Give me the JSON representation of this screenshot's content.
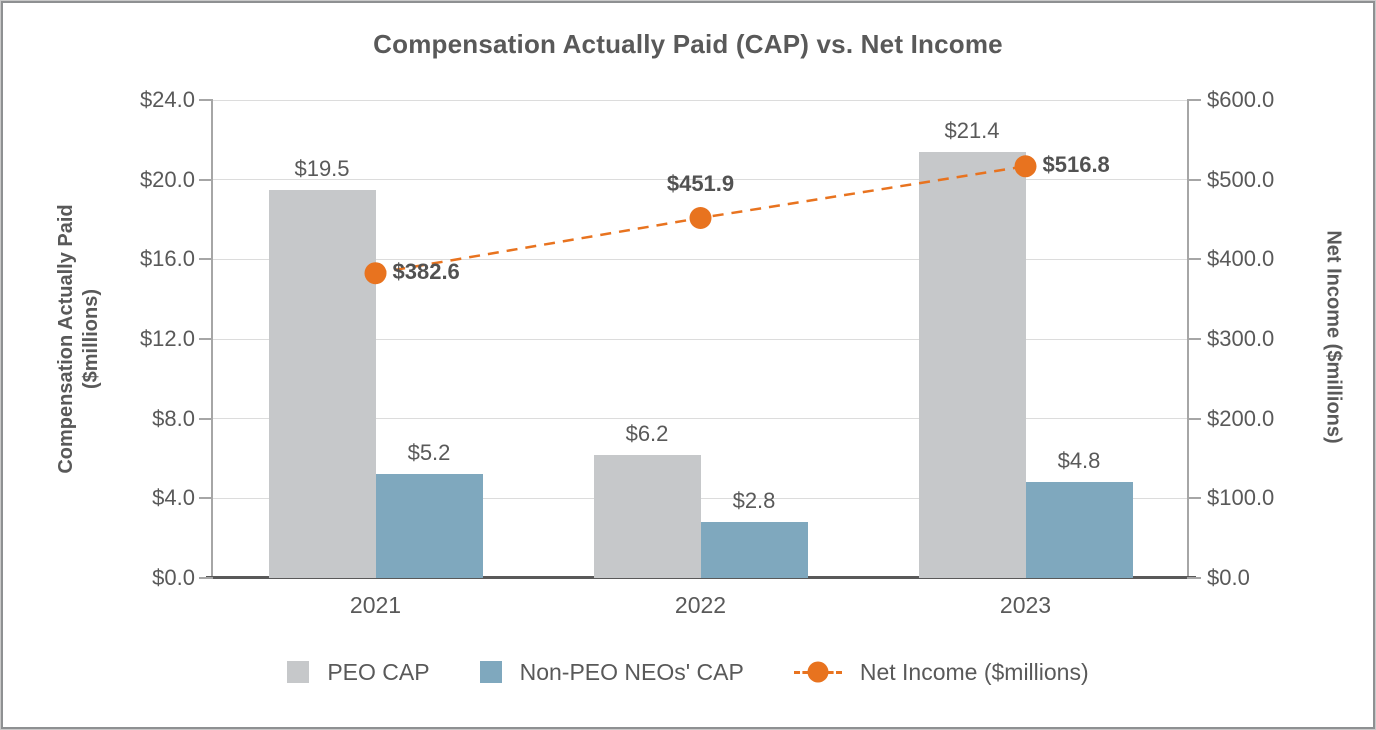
{
  "colors": {
    "text": "#595959",
    "gridline": "#dcdcdc",
    "axis_line": "#a6a6a6",
    "x_axis_line": "#595959",
    "peo_bar": "#c6c8ca",
    "non_peo_bar": "#7fa8be",
    "net_income": "#e8731f"
  },
  "chart_data": {
    "type": "bar",
    "subtype": "combo-bar-line-dual-axis",
    "title": "Compensation Actually Paid (CAP) vs. Net Income",
    "categories": [
      "2021",
      "2022",
      "2023"
    ],
    "grid": "horizontal",
    "legend_position": "bottom",
    "left_axis": {
      "title": "Compensation Actually Paid\n($millions)",
      "min": 0,
      "max": 24,
      "ticks": [
        {
          "value": 0,
          "label": "$0.0"
        },
        {
          "value": 4,
          "label": "$4.0"
        },
        {
          "value": 8,
          "label": "$8.0"
        },
        {
          "value": 12,
          "label": "$12.0"
        },
        {
          "value": 16,
          "label": "$16.0"
        },
        {
          "value": 20,
          "label": "$20.0"
        },
        {
          "value": 24,
          "label": "$24.0"
        }
      ]
    },
    "right_axis": {
      "title": "Net Income ($millions)",
      "min": 0,
      "max": 600,
      "ticks": [
        {
          "value": 0,
          "label": "$0.0"
        },
        {
          "value": 100,
          "label": "$100.0"
        },
        {
          "value": 200,
          "label": "$200.0"
        },
        {
          "value": 300,
          "label": "$300.0"
        },
        {
          "value": 400,
          "label": "$400.0"
        },
        {
          "value": 500,
          "label": "$500.0"
        },
        {
          "value": 600,
          "label": "$600.0"
        }
      ]
    },
    "bar_series": [
      {
        "key": "peo-cap",
        "name": "PEO CAP",
        "color": "#c6c8ca",
        "values": [
          19.5,
          6.2,
          21.4
        ],
        "labels": [
          "$19.5",
          "$6.2",
          "$21.4"
        ]
      },
      {
        "key": "non-peo-neos-cap",
        "name": "Non-PEO NEOs' CAP",
        "color": "#7fa8be",
        "values": [
          5.2,
          2.8,
          4.8
        ],
        "labels": [
          "$5.2",
          "$2.8",
          "$4.8"
        ]
      }
    ],
    "line_series": {
      "key": "net-income",
      "name": "Net Income ($millions)",
      "color": "#e8731f",
      "axis": "right",
      "values": [
        382.6,
        451.9,
        516.8
      ],
      "labels": [
        "$382.6",
        "$451.9",
        "$516.8"
      ],
      "label_positions": [
        "right",
        "above",
        "right"
      ]
    },
    "legend": [
      {
        "type": "square",
        "color": "#c6c8ca",
        "label": "PEO CAP"
      },
      {
        "type": "square",
        "color": "#7fa8be",
        "label": "Non-PEO NEOs' CAP"
      },
      {
        "type": "line-marker",
        "color": "#e8731f",
        "label": "Net Income ($millions)"
      }
    ]
  }
}
